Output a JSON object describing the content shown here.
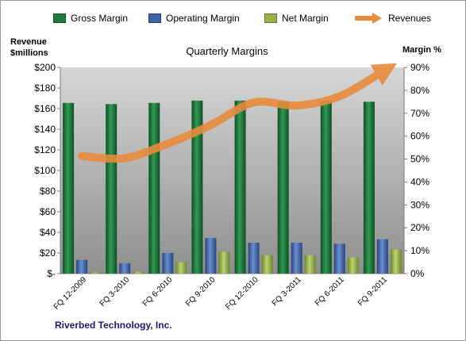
{
  "legend": {
    "gross": "Gross Margin",
    "operating": "Operating Margin",
    "net": "Net Margin",
    "revenues": "Revenues"
  },
  "axes": {
    "left_title_line1": "Revenue",
    "left_title_line2": "$millions",
    "right_title": "Margin %"
  },
  "footer": {
    "company": "Riverbed Technology, Inc."
  },
  "colors": {
    "gross": "#1f7a3c",
    "operating": "#3f63a8",
    "net": "#98b34c",
    "revenues": "#e88b3c",
    "plot_top": "#d6d6d6",
    "plot_bottom": "#8f8f8f"
  },
  "chart_data": {
    "type": "bar",
    "title": "Quarterly Margins",
    "categories": [
      "FQ 12-2009",
      "FQ 3-2010",
      "FQ 6-2010",
      "FQ 9-2010",
      "FQ 12-2010",
      "FQ 3-2011",
      "FQ 6-2011",
      "FQ 9-2011"
    ],
    "series": [
      {
        "name": "Gross Margin",
        "axis": "right",
        "unit": "%",
        "values": [
          74.5,
          74,
          74.5,
          75.5,
          75.5,
          75,
          75.5,
          75
        ]
      },
      {
        "name": "Operating Margin",
        "axis": "right",
        "unit": "%",
        "values": [
          6,
          4.5,
          9,
          15.5,
          13.5,
          13.5,
          13,
          15
        ]
      },
      {
        "name": "Net Margin",
        "axis": "right",
        "unit": "%",
        "values": [
          0.5,
          0.8,
          5,
          9.5,
          8,
          8,
          7,
          10.5
        ]
      },
      {
        "name": "Revenues",
        "type": "line",
        "axis": "left",
        "unit": "$millions",
        "values": [
          114,
          112,
          126,
          144,
          166,
          163,
          172,
          196
        ]
      }
    ],
    "yaxis_left": {
      "min": 0,
      "max": 200,
      "step": 20,
      "tick_labels": [
        "$-",
        "$20",
        "$40",
        "$60",
        "$80",
        "$100",
        "$120",
        "$140",
        "$160",
        "$180",
        "$200"
      ]
    },
    "yaxis_right": {
      "min": 0,
      "max": 90,
      "step": 10,
      "tick_labels": [
        "0%",
        "10%",
        "20%",
        "30%",
        "40%",
        "50%",
        "60%",
        "70%",
        "80%",
        "90%"
      ]
    },
    "grid": false,
    "legend_position": "top"
  }
}
